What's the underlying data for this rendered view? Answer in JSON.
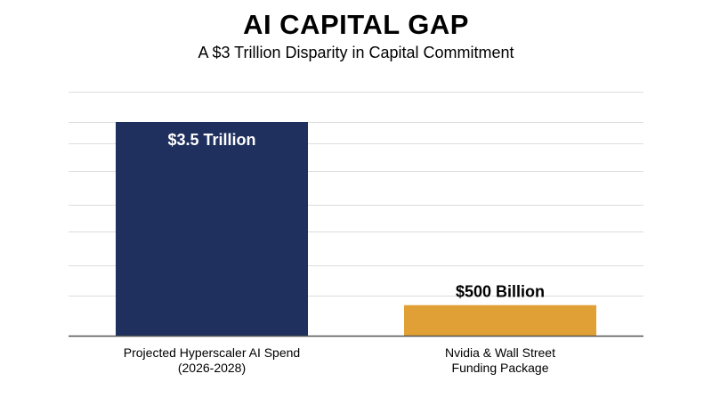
{
  "chart_data": {
    "type": "bar",
    "title": "AI CAPITAL GAP",
    "subtitle": "A $3 Trillion Disparity in Capital Commitment",
    "categories": [
      [
        "Projected Hyperscaler AI Spend",
        "(2026-2028)"
      ],
      [
        "Nvidia & Wall Street",
        "Funding Package"
      ]
    ],
    "values": [
      3500,
      500
    ],
    "value_unit": "billion USD",
    "data_labels": [
      "$3.5 Trillion",
      "$500 Billion"
    ],
    "data_label_position": [
      "inside-top",
      "above"
    ],
    "bar_colors": [
      "#1f2f5e",
      "#e0a035"
    ],
    "data_label_colors": [
      "#ffffff",
      "#000000"
    ],
    "ylim": [
      0,
      4200
    ],
    "y_ticks": [
      0,
      650,
      1150,
      1700,
      2150,
      2700,
      3150,
      3500,
      4000
    ],
    "grid": true,
    "legend": "none",
    "xlabel": "",
    "ylabel": ""
  }
}
